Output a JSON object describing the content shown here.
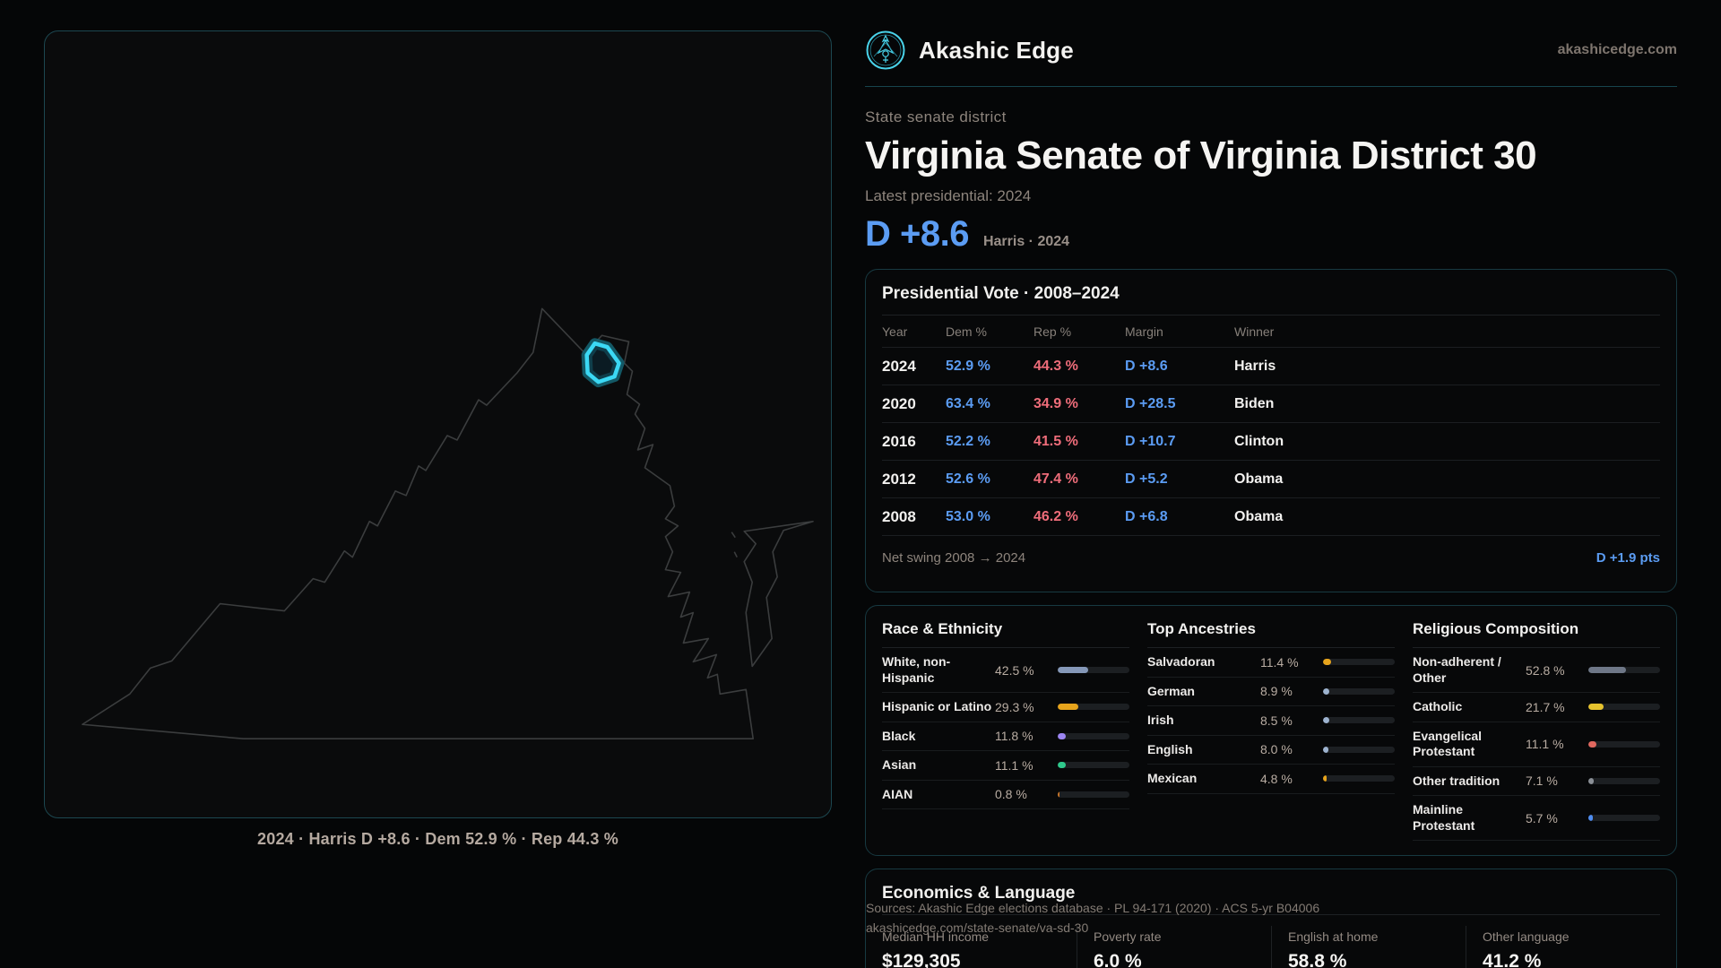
{
  "brand": {
    "name": "Akashic Edge",
    "domain": "akashicedge.com",
    "logo_color": "#49d2e9"
  },
  "map": {
    "caption": "2024 · Harris D +8.6 · Dem 52.9 % · Rep 44.3 %",
    "outline_color": "#3b3d3e",
    "district_color": "#3bd8f4",
    "district_glow": "#14616f"
  },
  "header": {
    "eyebrow": "State senate district",
    "title": "Virginia Senate of Virginia District 30",
    "latest_label": "Latest presidential: 2024",
    "lead_margin": "D +8.6",
    "lead_sub": "Harris · 2024",
    "accent_blue": "#5b9cf3",
    "accent_red": "#ef6d7a"
  },
  "presidential": {
    "title": "Presidential Vote · 2008–2024",
    "columns": [
      "Year",
      "Dem %",
      "Rep %",
      "Margin",
      "Winner"
    ],
    "rows": [
      {
        "year": "2024",
        "dem": "52.9 %",
        "rep": "44.3 %",
        "margin": "D +8.6",
        "winner": "Harris"
      },
      {
        "year": "2020",
        "dem": "63.4 %",
        "rep": "34.9 %",
        "margin": "D +28.5",
        "winner": "Biden"
      },
      {
        "year": "2016",
        "dem": "52.2 %",
        "rep": "41.5 %",
        "margin": "D +10.7",
        "winner": "Clinton"
      },
      {
        "year": "2012",
        "dem": "52.6 %",
        "rep": "47.4 %",
        "margin": "D +5.2",
        "winner": "Obama"
      },
      {
        "year": "2008",
        "dem": "53.0 %",
        "rep": "46.2 %",
        "margin": "D +6.8",
        "winner": "Obama"
      }
    ],
    "net_swing_label": "Net swing 2008 → 2024",
    "net_swing_value": "D +1.9 pts"
  },
  "demographics": {
    "race": {
      "title": "Race & Ethnicity",
      "rows": [
        {
          "label": "White, non-Hispanic",
          "value": "42.5 %",
          "pct": 42.5,
          "color": "#8598b8"
        },
        {
          "label": "Hispanic or Latino",
          "value": "29.3 %",
          "pct": 29.3,
          "color": "#e7a41c"
        },
        {
          "label": "Black",
          "value": "11.8 %",
          "pct": 11.8,
          "color": "#9c85f2"
        },
        {
          "label": "Asian",
          "value": "11.1 %",
          "pct": 11.1,
          "color": "#2fc98c"
        },
        {
          "label": "AIAN",
          "value": "0.8 %",
          "pct": 0.8,
          "color": "#c8762a"
        }
      ]
    },
    "ancestries": {
      "title": "Top Ancestries",
      "rows": [
        {
          "label": "Salvadoran",
          "value": "11.4 %",
          "pct": 11.4,
          "color": "#e7a41c"
        },
        {
          "label": "German",
          "value": "8.9 %",
          "pct": 8.9,
          "color": "#9db3cf"
        },
        {
          "label": "Irish",
          "value": "8.5 %",
          "pct": 8.5,
          "color": "#9db3cf"
        },
        {
          "label": "English",
          "value": "8.0 %",
          "pct": 8.0,
          "color": "#9db3cf"
        },
        {
          "label": "Mexican",
          "value": "4.8 %",
          "pct": 4.8,
          "color": "#e7a41c"
        }
      ]
    },
    "religion": {
      "title": "Religious Composition",
      "rows": [
        {
          "label": "Non-adherent / Other",
          "value": "52.8 %",
          "pct": 52.8,
          "color": "#6e7787"
        },
        {
          "label": "Catholic",
          "value": "21.7 %",
          "pct": 21.7,
          "color": "#e6c32e"
        },
        {
          "label": "Evangelical Protestant",
          "value": "11.1 %",
          "pct": 11.1,
          "color": "#e0685f"
        },
        {
          "label": "Other tradition",
          "value": "7.1 %",
          "pct": 7.1,
          "color": "#8a8f96"
        },
        {
          "label": "Mainline Protestant",
          "value": "5.7 %",
          "pct": 5.7,
          "color": "#4f8df0"
        }
      ]
    }
  },
  "economics": {
    "title": "Economics & Language",
    "stats": [
      {
        "label": "Median HH income",
        "value": "$129,305"
      },
      {
        "label": "Poverty rate",
        "value": "6.0 %"
      },
      {
        "label": "English at home",
        "value": "58.8 %"
      },
      {
        "label": "Other language",
        "value": "41.2 %"
      }
    ]
  },
  "sources": {
    "line1": "Sources: Akashic Edge elections database · PL 94-171 (2020) · ACS 5-yr B04006",
    "line2": "akashicedge.com/state-senate/va-sd-30"
  }
}
